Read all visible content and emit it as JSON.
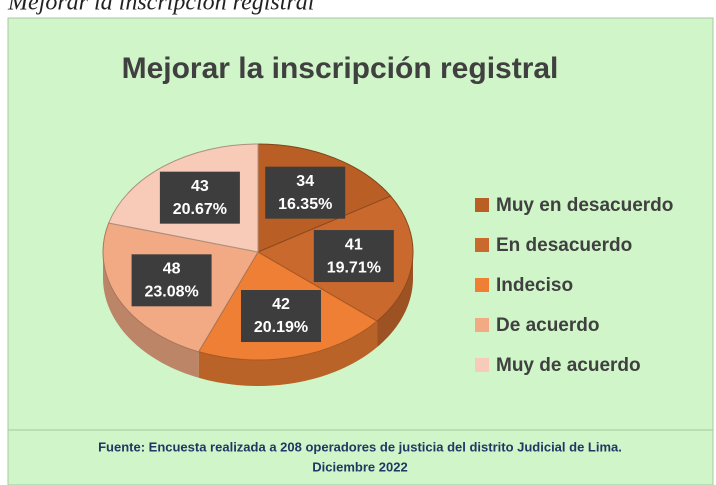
{
  "caption": "Mejorar la inscripción registral",
  "chart_data": {
    "type": "pie",
    "title": "Mejorar la inscripción registral",
    "categories": [
      "Muy en desacuerdo",
      "En desacuerdo",
      "Indeciso",
      "De acuerdo",
      "Muy de acuerdo"
    ],
    "values": [
      34,
      41,
      42,
      48,
      43
    ],
    "percent_labels": [
      "16.35%",
      "19.71%",
      "20.19%",
      "23.08%",
      "20.67%"
    ],
    "colors": [
      "#b95f25",
      "#c9692d",
      "#ee7f34",
      "#f2aa85",
      "#f7cbb7"
    ],
    "legend": "right"
  },
  "source": [
    "Fuente: Encuesta realizada a 208 operadores de justicia del distrito Judicial de Lima.",
    "Diciembre 2022"
  ]
}
